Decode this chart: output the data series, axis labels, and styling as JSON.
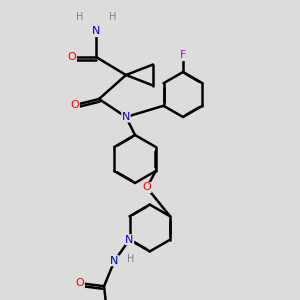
{
  "bg_color": "#dcdcdc",
  "atom_colors": {
    "N": "#0000cd",
    "O": "#ff0000",
    "F": "#cc00cc",
    "H": "#808080"
  },
  "bond_color": "#000000",
  "bond_width": 1.8,
  "font_size": 8.0
}
